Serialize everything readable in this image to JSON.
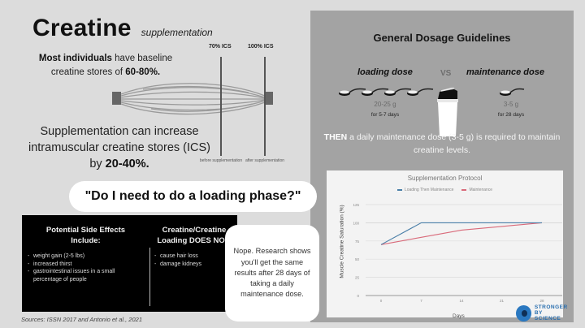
{
  "header": {
    "title": "Creatine",
    "subtitle": "supplementation"
  },
  "baseline": {
    "bold_lead": "Most individuals",
    "text_mid": " have baseline creatine stores of ",
    "bold_value": "60-80%."
  },
  "supplementation": {
    "text": "Supplementation can increase intramuscular creatine stores (ICS) by ",
    "bold_value": "20-40%."
  },
  "diagram": {
    "left_label": "70% ICS",
    "right_label": "100% ICS",
    "left_caption": "before supplementation",
    "right_caption": "after supplementation",
    "line_color": "#555555"
  },
  "question": {
    "text": "\"Do I need to do a loading phase?\""
  },
  "side_effects": {
    "heading": "Potential Side Effects Include:",
    "items": [
      "weight gain (2-5 lbs)",
      "increased thirst",
      "gastrointestinal issues in a small percentage of people"
    ]
  },
  "does_not": {
    "heading": "Creatine/Creatine Loading DOES NOT:",
    "items": [
      "cause hair loss",
      "damage kidneys"
    ]
  },
  "answer": {
    "text": "Nope. Research shows you'll get the same results after 28 days of taking a daily maintenance dose."
  },
  "sources": "Sources: ISSN 2017 and Antonio et al., 2021",
  "dosage": {
    "title": "General Dosage Guidelines",
    "loading_label": "loading dose",
    "vs": "VS",
    "maintenance_label": "maintenance dose",
    "loading_amount": "20-25 g",
    "loading_duration": "for 5-7 days",
    "maintenance_amount": "3-5 g",
    "maintenance_duration": "for 28 days",
    "then_bold": "THEN",
    "then_text": " a daily maintenance dose (3-5 g) is required to maintain creatine levels."
  },
  "logo": {
    "line1": "STRONGER",
    "line2": "BY SCIENCE"
  },
  "colors": {
    "background": "#dcdcdc",
    "panel": "#a3a3a3",
    "loading_series": "#4a7fa8",
    "maintenance_series": "#d96a7a"
  },
  "chart_data": {
    "type": "line",
    "title": "Supplementation Protocol",
    "xlabel": "Days",
    "ylabel": "Muscle Creatine Saturation (%)",
    "x": [
      0,
      7,
      14,
      21,
      28
    ],
    "x_ticks": [
      "0",
      "7",
      "14",
      "21",
      "28"
    ],
    "y_ticks": [
      "0",
      "25",
      "50",
      "75",
      "100",
      "125"
    ],
    "ylim": [
      0,
      125
    ],
    "grid": true,
    "legend_position": "top",
    "series": [
      {
        "name": "Loading Then Maintenance",
        "color": "#4a7fa8",
        "values": [
          70,
          100,
          100,
          100,
          100
        ]
      },
      {
        "name": "Maintenance",
        "color": "#d96a7a",
        "values": [
          70,
          80,
          90,
          95,
          100
        ]
      }
    ]
  }
}
